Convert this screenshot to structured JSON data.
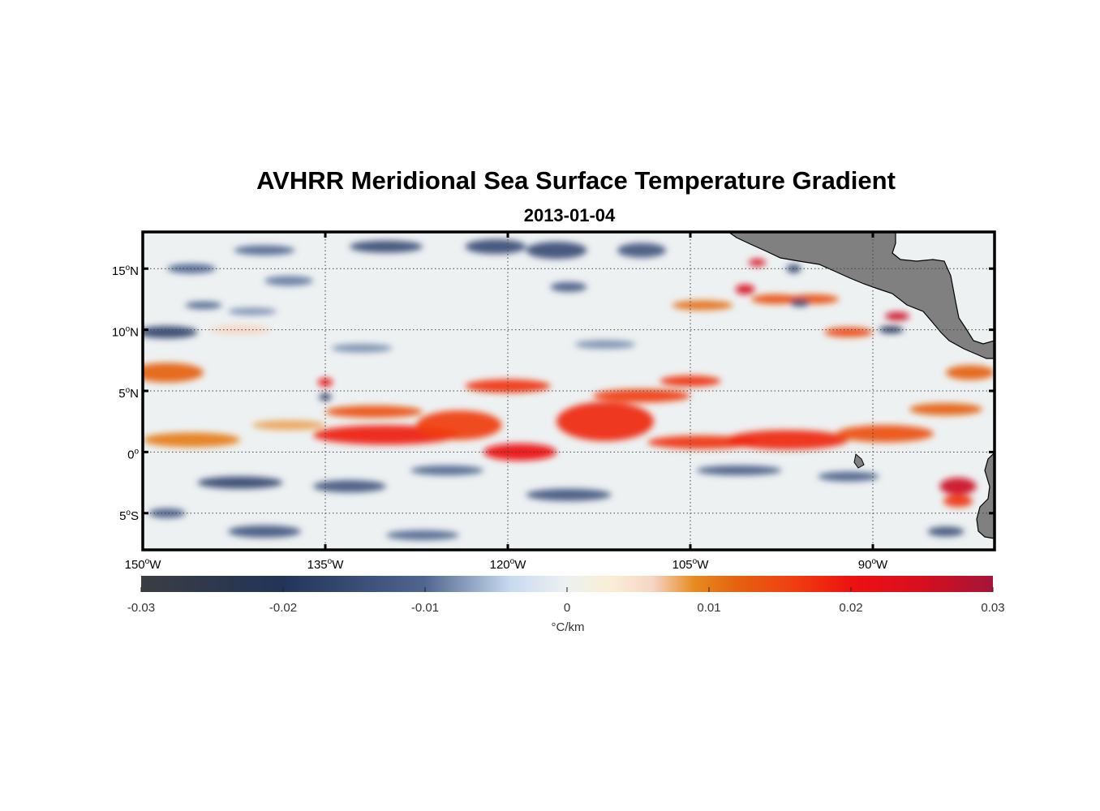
{
  "title": "AVHRR Meridional Sea Surface Temperature Gradient",
  "subtitle": "2013-01-04",
  "map": {
    "lon_range": [
      -150,
      -80
    ],
    "lat_range": [
      -8,
      18
    ],
    "lon_ticks": [
      {
        "value": -150,
        "num": "150",
        "hem": "W"
      },
      {
        "value": -135,
        "num": "135",
        "hem": "W"
      },
      {
        "value": -120,
        "num": "120",
        "hem": "W"
      },
      {
        "value": -105,
        "num": "105",
        "hem": "W"
      },
      {
        "value": -90,
        "num": "90",
        "hem": "W"
      }
    ],
    "lat_ticks": [
      {
        "value": 15,
        "num": "15",
        "hem": "N"
      },
      {
        "value": 10,
        "num": "10",
        "hem": "N"
      },
      {
        "value": 5,
        "num": "5",
        "hem": "N"
      },
      {
        "value": 0,
        "num": "0",
        "hem": ""
      },
      {
        "value": -5,
        "num": "5",
        "hem": "S"
      }
    ],
    "grid": true,
    "land_color": "#808080",
    "features": [
      {
        "lon": -148,
        "lat": 6.5,
        "v": 0.012,
        "rx": 3,
        "ry": 0.8
      },
      {
        "lon": -142,
        "lat": 10,
        "v": 0.006,
        "rx": 2.5,
        "ry": 0.4
      },
      {
        "lon": -146,
        "lat": 1,
        "v": 0.01,
        "rx": 4,
        "ry": 0.6
      },
      {
        "lon": -138,
        "lat": 2.2,
        "v": 0.008,
        "rx": 3,
        "ry": 0.4
      },
      {
        "lon": -135,
        "lat": 5.7,
        "v": 0.02,
        "rx": 0.6,
        "ry": 0.35
      },
      {
        "lon": -131,
        "lat": 3.3,
        "v": 0.014,
        "rx": 4,
        "ry": 0.5
      },
      {
        "lon": -130,
        "lat": 1.4,
        "v": 0.019,
        "rx": 6,
        "ry": 0.8
      },
      {
        "lon": -124,
        "lat": 2.2,
        "v": 0.016,
        "rx": 3.5,
        "ry": 1.2
      },
      {
        "lon": -120,
        "lat": 5.4,
        "v": 0.017,
        "rx": 3.5,
        "ry": 0.55
      },
      {
        "lon": -119,
        "lat": 0,
        "v": 0.02,
        "rx": 3,
        "ry": 0.7
      },
      {
        "lon": -112,
        "lat": 2.5,
        "v": 0.018,
        "rx": 4,
        "ry": 1.6
      },
      {
        "lon": -109,
        "lat": 4.6,
        "v": 0.016,
        "rx": 4,
        "ry": 0.55
      },
      {
        "lon": -105,
        "lat": 5.8,
        "v": 0.017,
        "rx": 2.5,
        "ry": 0.45
      },
      {
        "lon": -104,
        "lat": 0.8,
        "v": 0.017,
        "rx": 4.5,
        "ry": 0.55
      },
      {
        "lon": -97,
        "lat": 1,
        "v": 0.018,
        "rx": 5,
        "ry": 0.8
      },
      {
        "lon": -89,
        "lat": 1.5,
        "v": 0.014,
        "rx": 4,
        "ry": 0.7
      },
      {
        "lon": -84,
        "lat": 3.5,
        "v": 0.012,
        "rx": 3,
        "ry": 0.5
      },
      {
        "lon": -82,
        "lat": 6.5,
        "v": 0.012,
        "rx": 2,
        "ry": 0.6
      },
      {
        "lon": -100.5,
        "lat": 13.3,
        "v": 0.024,
        "rx": 0.8,
        "ry": 0.4
      },
      {
        "lon": -99.5,
        "lat": 15.5,
        "v": 0.024,
        "rx": 0.7,
        "ry": 0.3
      },
      {
        "lon": -98,
        "lat": 12.5,
        "v": 0.014,
        "rx": 2,
        "ry": 0.4
      },
      {
        "lon": -95,
        "lat": 12.5,
        "v": 0.014,
        "rx": 2.2,
        "ry": 0.4
      },
      {
        "lon": -92,
        "lat": 9.8,
        "v": 0.015,
        "rx": 2,
        "ry": 0.4
      },
      {
        "lon": -88,
        "lat": 11.1,
        "v": 0.026,
        "rx": 1,
        "ry": 0.35
      },
      {
        "lon": -104,
        "lat": 12,
        "v": 0.011,
        "rx": 2.5,
        "ry": 0.4
      },
      {
        "lon": -83,
        "lat": -2.8,
        "v": 0.026,
        "rx": 1.5,
        "ry": 0.7
      },
      {
        "lon": -83,
        "lat": -4,
        "v": 0.017,
        "rx": 1.2,
        "ry": 0.5
      },
      {
        "lon": -148,
        "lat": 9.8,
        "v": -0.017,
        "rx": 2.5,
        "ry": 0.5
      },
      {
        "lon": -145,
        "lat": 12,
        "v": -0.011,
        "rx": 1.5,
        "ry": 0.3
      },
      {
        "lon": -146,
        "lat": 15,
        "v": -0.01,
        "rx": 2,
        "ry": 0.4
      },
      {
        "lon": -140,
        "lat": 16.5,
        "v": -0.01,
        "rx": 2.5,
        "ry": 0.4
      },
      {
        "lon": -138,
        "lat": 14,
        "v": -0.009,
        "rx": 2,
        "ry": 0.4
      },
      {
        "lon": -130,
        "lat": 16.8,
        "v": -0.015,
        "rx": 3,
        "ry": 0.5
      },
      {
        "lon": -121,
        "lat": 16.8,
        "v": -0.015,
        "rx": 2.5,
        "ry": 0.6
      },
      {
        "lon": -116,
        "lat": 16.5,
        "v": -0.015,
        "rx": 2.5,
        "ry": 0.7
      },
      {
        "lon": -109,
        "lat": 16.5,
        "v": -0.013,
        "rx": 2,
        "ry": 0.6
      },
      {
        "lon": -115,
        "lat": 13.5,
        "v": -0.012,
        "rx": 1.5,
        "ry": 0.4
      },
      {
        "lon": -141,
        "lat": 11.5,
        "v": -0.008,
        "rx": 2,
        "ry": 0.3
      },
      {
        "lon": -132,
        "lat": 8.5,
        "v": -0.008,
        "rx": 2.5,
        "ry": 0.35
      },
      {
        "lon": -112,
        "lat": 8.8,
        "v": -0.008,
        "rx": 2.5,
        "ry": 0.35
      },
      {
        "lon": -135,
        "lat": 4.5,
        "v": -0.019,
        "rx": 0.5,
        "ry": 0.3
      },
      {
        "lon": -96.5,
        "lat": 15,
        "v": -0.016,
        "rx": 0.6,
        "ry": 0.35
      },
      {
        "lon": -96,
        "lat": 12.2,
        "v": -0.016,
        "rx": 0.8,
        "ry": 0.3
      },
      {
        "lon": -88.5,
        "lat": 10,
        "v": -0.02,
        "rx": 1,
        "ry": 0.3
      },
      {
        "lon": -142,
        "lat": -2.5,
        "v": -0.016,
        "rx": 3.5,
        "ry": 0.5
      },
      {
        "lon": -133,
        "lat": -2.8,
        "v": -0.013,
        "rx": 3,
        "ry": 0.5
      },
      {
        "lon": -125,
        "lat": -1.5,
        "v": -0.01,
        "rx": 3,
        "ry": 0.4
      },
      {
        "lon": -115,
        "lat": -3.5,
        "v": -0.013,
        "rx": 3.5,
        "ry": 0.5
      },
      {
        "lon": -101,
        "lat": -1.5,
        "v": -0.012,
        "rx": 3.5,
        "ry": 0.4
      },
      {
        "lon": -92,
        "lat": -2,
        "v": -0.011,
        "rx": 2.5,
        "ry": 0.4
      },
      {
        "lon": -140,
        "lat": -6.5,
        "v": -0.013,
        "rx": 3,
        "ry": 0.5
      },
      {
        "lon": -127,
        "lat": -6.8,
        "v": -0.01,
        "rx": 3,
        "ry": 0.4
      },
      {
        "lon": -148,
        "lat": -5,
        "v": -0.012,
        "rx": 1.5,
        "ry": 0.4
      },
      {
        "lon": -84,
        "lat": -6.5,
        "v": -0.014,
        "rx": 1.5,
        "ry": 0.4
      }
    ]
  },
  "colorbar": {
    "range": [
      -0.03,
      0.03
    ],
    "ticks": [
      "-0.03",
      "-0.02",
      "-0.01",
      "0",
      "0.01",
      "0.02",
      "0.03"
    ],
    "label": "°C/km",
    "stops": [
      {
        "v": -0.03,
        "color": "#3a3d42"
      },
      {
        "v": -0.02,
        "color": "#22345a"
      },
      {
        "v": -0.01,
        "color": "#4f668f"
      },
      {
        "v": -0.004,
        "color": "#c8daf0"
      },
      {
        "v": 0,
        "color": "#edf1f1"
      },
      {
        "v": 0.003,
        "color": "#faeed6"
      },
      {
        "v": 0.006,
        "color": "#f6d6c6"
      },
      {
        "v": 0.009,
        "color": "#e68a1e"
      },
      {
        "v": 0.012,
        "color": "#e5620f"
      },
      {
        "v": 0.016,
        "color": "#f03e10"
      },
      {
        "v": 0.02,
        "color": "#ee1111"
      },
      {
        "v": 0.025,
        "color": "#d70f1f"
      },
      {
        "v": 0.03,
        "color": "#a31539"
      }
    ]
  }
}
